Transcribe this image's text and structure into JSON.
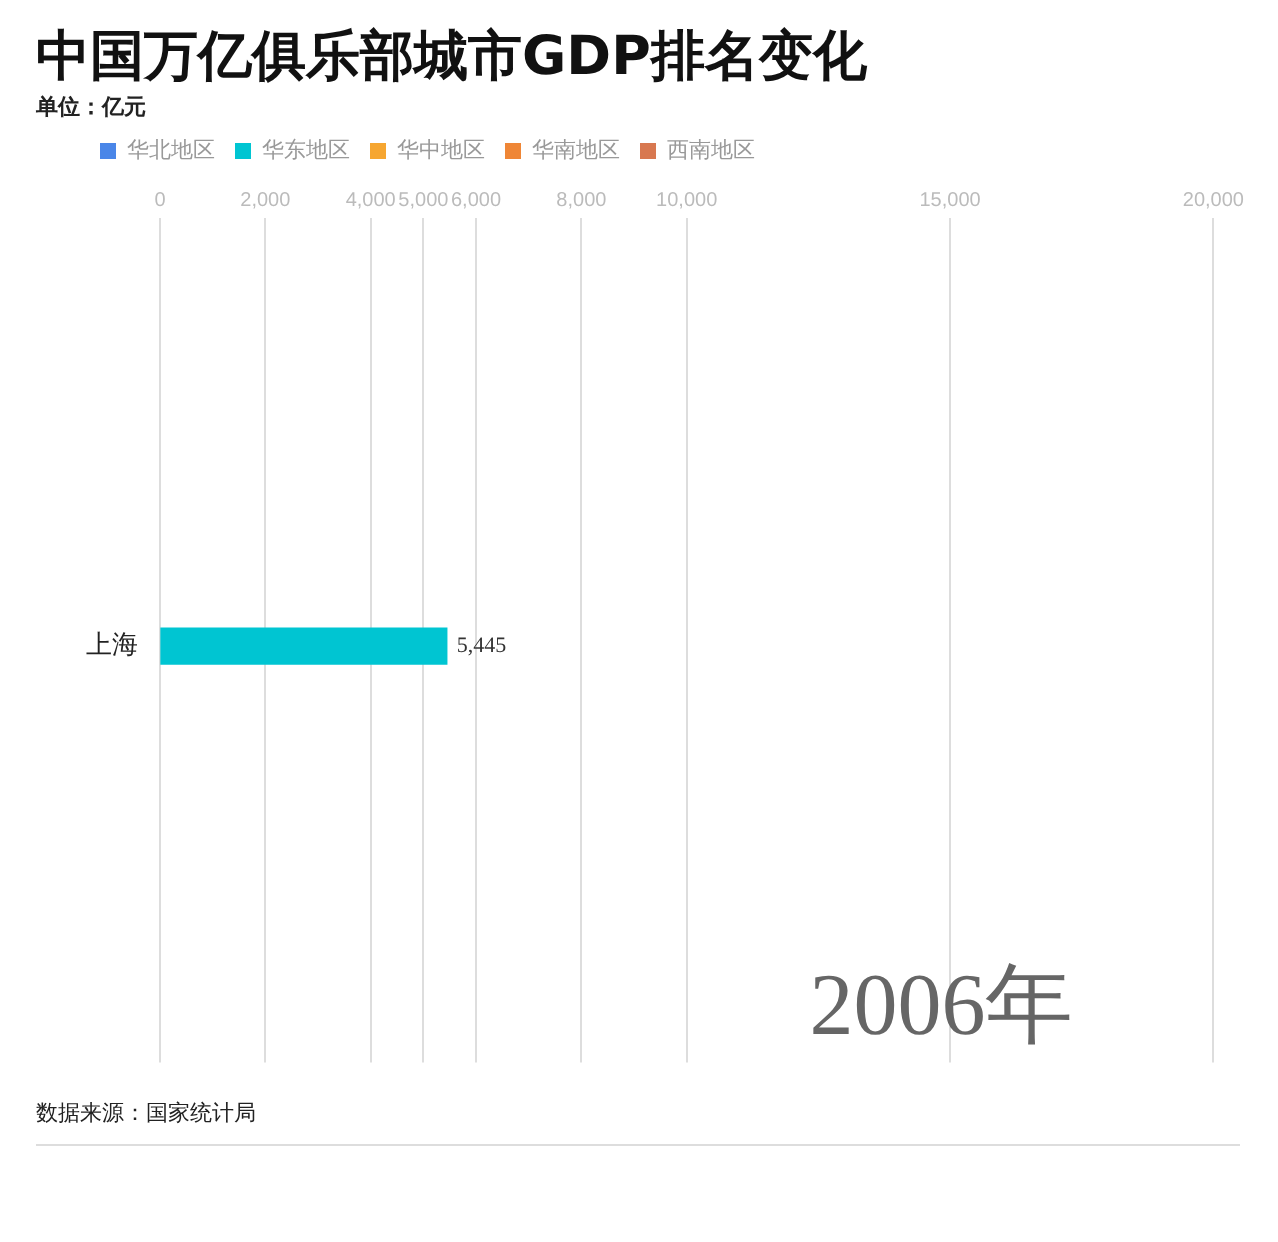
{
  "chart_data": {
    "type": "bar",
    "orientation": "horizontal",
    "title": "中国万亿俱乐部城市GDP排名变化",
    "subtitle": "单位：亿元",
    "categories": [
      "上海"
    ],
    "series": [
      {
        "name": "华北地区",
        "color": "#4a86e8",
        "values": [
          null
        ]
      },
      {
        "name": "华东地区",
        "color": "#00c5d2",
        "values": [
          5445
        ],
        "value_labels": [
          "5,445"
        ]
      },
      {
        "name": "华中地区",
        "color": "#f6a631",
        "values": [
          null
        ]
      },
      {
        "name": "华南地区",
        "color": "#ef8636",
        "values": [
          null
        ]
      },
      {
        "name": "西南地区",
        "color": "#d87850",
        "values": [
          null
        ]
      }
    ],
    "xlim": [
      0,
      20000
    ],
    "xticks": [
      0,
      {
        "value": 2000,
        "label": "2,000"
      },
      {
        "value": 4000,
        "label": "4,000"
      },
      {
        "value": 5000,
        "label": "5,000"
      },
      {
        "value": 6000,
        "label": "6,000"
      },
      {
        "value": 8000,
        "label": "8,000"
      },
      {
        "value": 10000,
        "label": "10,000"
      },
      {
        "value": 15000,
        "label": "15,000"
      },
      {
        "value": 20000,
        "label": "20,000"
      }
    ],
    "grid": "x",
    "legend": "top left",
    "annotations": [
      "2006年",
      "数据来源：国家统计局"
    ]
  }
}
